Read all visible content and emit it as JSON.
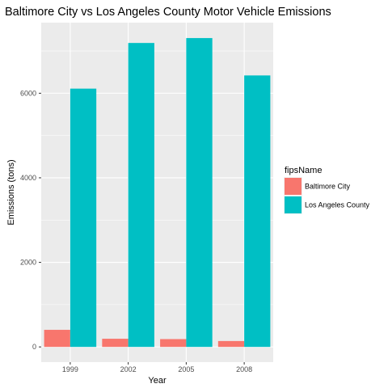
{
  "chart_data": {
    "type": "bar",
    "title": "Baltimore City vs Los Angeles County Motor Vehicle Emissions",
    "xlabel": "Year",
    "ylabel": "Emissions (tons)",
    "categories": [
      "1999",
      "2002",
      "2005",
      "2008"
    ],
    "series": [
      {
        "name": "Baltimore City",
        "color": "#F8766D",
        "values": [
          404,
          193,
          185,
          139
        ]
      },
      {
        "name": "Los Angeles County",
        "color": "#00BFC4",
        "values": [
          6109,
          7189,
          7305,
          6421
        ]
      }
    ],
    "ylim": [
      -360,
      7670
    ],
    "yticks": [
      0,
      2000,
      4000,
      6000
    ],
    "grid": true,
    "panel_background": "#EBEBEB",
    "legend": {
      "title": "fipsName",
      "placement": "right"
    }
  }
}
